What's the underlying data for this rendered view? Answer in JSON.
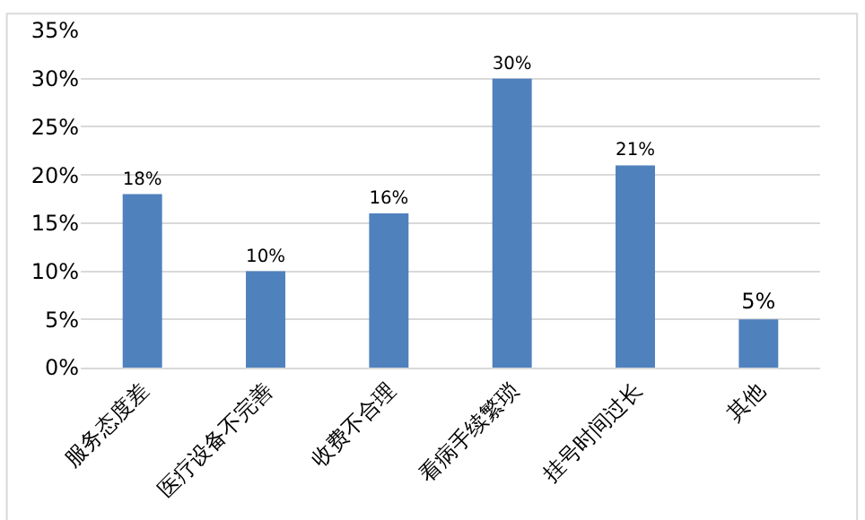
{
  "chart_data": {
    "type": "bar",
    "categories": [
      "服务态度差",
      "医疗设备不完善",
      "收费不合理",
      "看病手续繁琐",
      "挂号时间过长",
      "其他"
    ],
    "values": [
      18,
      10,
      16,
      30,
      21,
      5
    ],
    "value_labels": [
      "18%",
      "10%",
      "16%",
      "30%",
      "21%",
      "5%"
    ],
    "color": "#4f81bd",
    "ylim": [
      0,
      35
    ],
    "yticks": [
      {
        "value": 0,
        "label": "0%"
      },
      {
        "value": 5,
        "label": "5%"
      },
      {
        "value": 10,
        "label": "10%"
      },
      {
        "value": 15,
        "label": "15%"
      },
      {
        "value": 20,
        "label": "20%"
      },
      {
        "value": 25,
        "label": "25%"
      },
      {
        "value": 30,
        "label": "30%"
      },
      {
        "value": 35,
        "label": "35%"
      }
    ],
    "grid": "y",
    "legend": false
  }
}
